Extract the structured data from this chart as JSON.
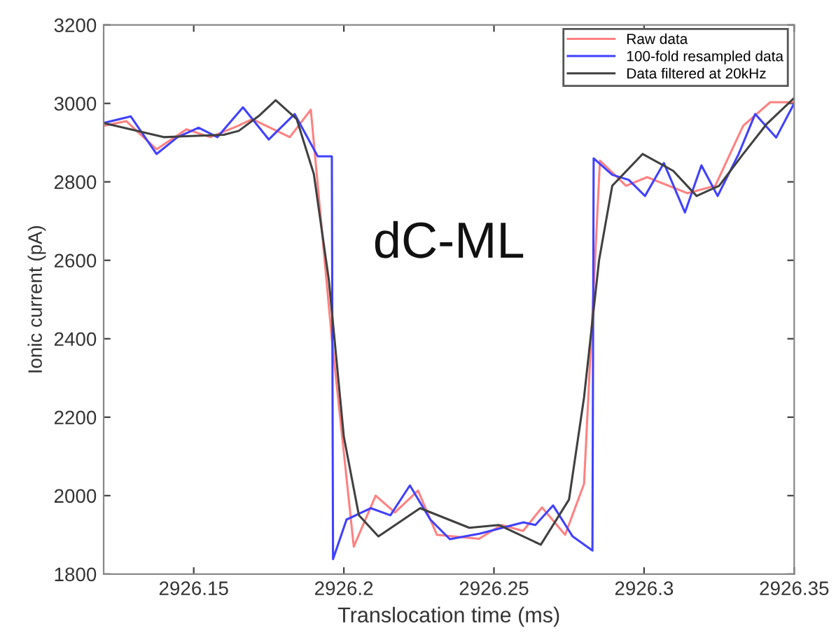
{
  "chart_data": {
    "type": "line",
    "xlabel": "Translocation time (ms)",
    "ylabel": "Ionic current (pA)",
    "annotations": [
      "dC-ML"
    ],
    "xlim": [
      2926.12,
      2926.35
    ],
    "xticks": [
      2926.15,
      2926.2,
      2926.25,
      2926.3,
      2926.35
    ],
    "ylim": [
      1800,
      3200
    ],
    "yticks": [
      1800,
      2000,
      2200,
      2400,
      2600,
      2800,
      3000,
      3200
    ],
    "grid": false,
    "legend": "top right",
    "marker": "none",
    "line_style": "solid",
    "series": [
      {
        "name": "Raw data",
        "color": "#ff8080",
        "x": [
          2926.12,
          2926.1275,
          2926.1376,
          2926.1476,
          2926.1555,
          2926.1648,
          2926.1695,
          2926.182,
          2926.189,
          2926.196,
          2926.2033,
          2926.2106,
          2926.217,
          2926.2247,
          2926.231,
          2926.245,
          2926.2525,
          2926.2597,
          2926.266,
          2926.2737,
          2926.28,
          2926.2853,
          2926.294,
          2926.301,
          2926.3144,
          2926.3237,
          2926.333,
          2926.342,
          2926.35
        ],
        "values": [
          2943,
          2955,
          2883,
          2934,
          2914,
          2943,
          2960,
          2914,
          2984,
          2400,
          1870,
          2000,
          1957,
          2013,
          1900,
          1890,
          1925,
          1910,
          1970,
          1900,
          2030,
          2854,
          2790,
          2812,
          2771,
          2790,
          2943,
          3003,
          3003
        ]
      },
      {
        "name": "100-fold resampled data",
        "color": "#4040ff",
        "x": [
          2926.12,
          2926.129,
          2926.1376,
          2926.1446,
          2926.1516,
          2926.1579,
          2926.1664,
          2926.175,
          2926.1836,
          2926.1913,
          2926.196,
          2926.1964,
          2926.2009,
          2926.209,
          2926.2155,
          2926.222,
          2926.2288,
          2926.2353,
          2926.2451,
          2926.2598,
          2926.2638,
          2926.2697,
          2926.2762,
          2926.2828,
          2926.2832,
          2926.2894,
          2926.2949,
          2926.3003,
          2926.3066,
          2926.3136,
          2926.3191,
          2926.3245,
          2926.3315,
          2926.337,
          2926.344,
          2926.35
        ],
        "values": [
          2950,
          2967,
          2871,
          2914,
          2938,
          2914,
          2990,
          2908,
          2973,
          2865,
          2865,
          1838,
          1939,
          1968,
          1950,
          2026,
          1939,
          1889,
          1903,
          1932,
          1925,
          1975,
          1896,
          1860,
          2860,
          2818,
          2805,
          2764,
          2848,
          2722,
          2842,
          2764,
          2871,
          2973,
          2913,
          3000
        ]
      },
      {
        "name": "Data filtered at 20kHz",
        "color": "#404040",
        "x": [
          2926.12,
          2926.14,
          2926.16,
          2926.165,
          2926.172,
          2926.1773,
          2926.1843,
          2926.19,
          2926.195,
          2926.2,
          2926.205,
          2926.2115,
          2926.2254,
          2926.2418,
          2926.2517,
          2926.2656,
          2926.275,
          2926.28,
          2926.285,
          2926.2894,
          2926.2995,
          2926.3097,
          2926.3175,
          2926.325,
          2926.333,
          2926.3409,
          2926.35
        ],
        "values": [
          2950,
          2914,
          2920,
          2930,
          2970,
          3008,
          2960,
          2820,
          2550,
          2150,
          1950,
          1896,
          1968,
          1918,
          1925,
          1875,
          1990,
          2250,
          2600,
          2790,
          2871,
          2828,
          2764,
          2790,
          2871,
          2948,
          3014
        ]
      }
    ]
  }
}
